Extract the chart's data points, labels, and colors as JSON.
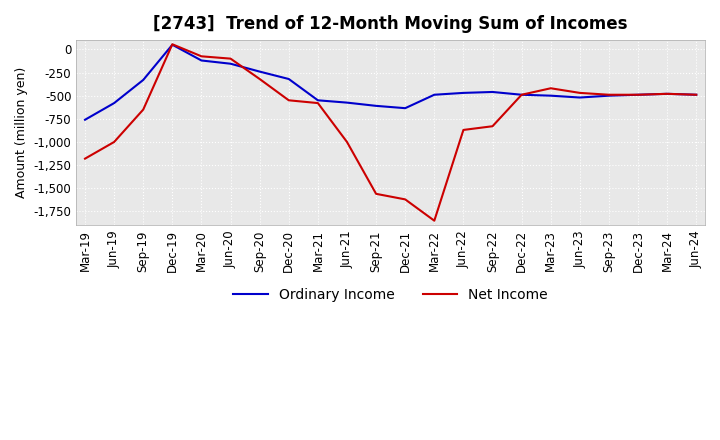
{
  "title": "[2743]  Trend of 12-Month Moving Sum of Incomes",
  "ylabel": "Amount (million yen)",
  "ylim": [
    -1900,
    100
  ],
  "yticks": [
    0,
    -250,
    -500,
    -750,
    -1000,
    -1250,
    -1500,
    -1750
  ],
  "x_labels": [
    "Mar-19",
    "Jun-19",
    "Sep-19",
    "Dec-19",
    "Mar-20",
    "Jun-20",
    "Sep-20",
    "Dec-20",
    "Mar-21",
    "Jun-21",
    "Sep-21",
    "Dec-21",
    "Mar-22",
    "Jun-22",
    "Sep-22",
    "Dec-22",
    "Mar-23",
    "Jun-23",
    "Sep-23",
    "Dec-23",
    "Mar-24",
    "Jun-24"
  ],
  "ordinary_income": [
    -760,
    -580,
    -330,
    50,
    -120,
    -155,
    -240,
    -320,
    -550,
    -575,
    -610,
    -635,
    -490,
    -470,
    -460,
    -490,
    -500,
    -520,
    -500,
    -490,
    -480,
    -490
  ],
  "net_income": [
    -1180,
    -1000,
    -650,
    55,
    -75,
    -100,
    -320,
    -550,
    -580,
    -1000,
    -1560,
    -1620,
    -1850,
    -870,
    -830,
    -490,
    -420,
    -470,
    -490,
    -490,
    -480,
    -490
  ],
  "ordinary_income_color": "#0000cc",
  "net_income_color": "#cc0000",
  "line_width": 1.5,
  "background_color": "#ffffff",
  "plot_bg_color": "#e8e8e8",
  "grid_color": "#ffffff",
  "title_fontsize": 12,
  "label_fontsize": 9,
  "tick_fontsize": 8.5
}
